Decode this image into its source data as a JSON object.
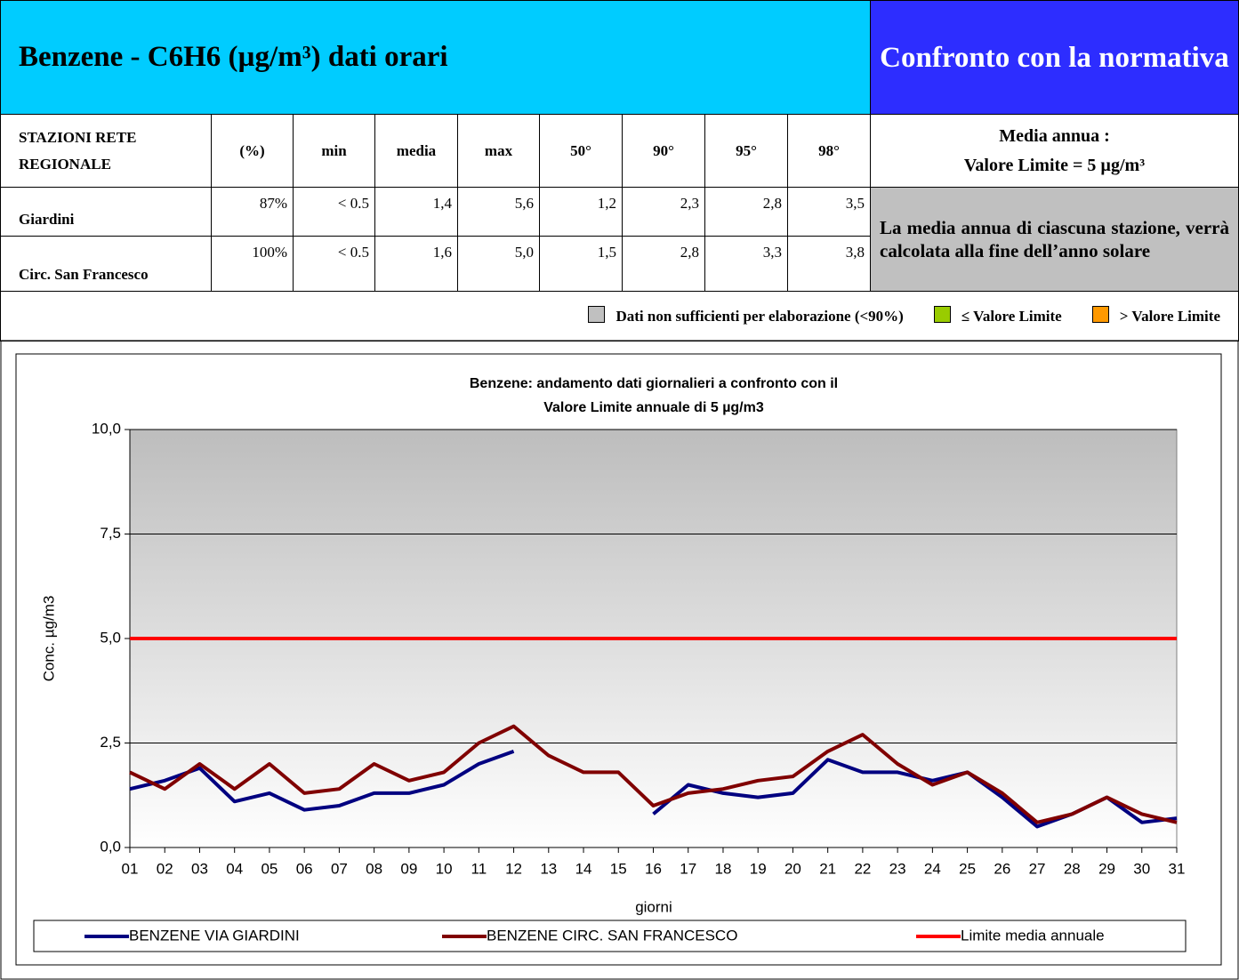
{
  "header": {
    "title": "Benzene - C6H6 (µg/m³) dati orari",
    "right": "Confronto con la normativa"
  },
  "table": {
    "columns": [
      "STAZIONI RETE REGIONALE",
      "(%)",
      "min",
      "media",
      "max",
      "50°",
      "90°",
      "95°",
      "98°"
    ],
    "rows": [
      [
        "Giardini",
        "87%",
        "< 0.5",
        "1,4",
        "5,6",
        "1,2",
        "2,3",
        "2,8",
        "3,5"
      ],
      [
        "Circ. San Francesco",
        "100%",
        "< 0.5",
        "1,6",
        "5,0",
        "1,5",
        "2,8",
        "3,3",
        "3,8"
      ]
    ]
  },
  "normativa": {
    "heading": "Media annua :",
    "limit": "Valore Limite = 5 µg/m³",
    "note": "La media annua di ciascuna stazione, verrà calcolata alla fine dell’anno solare"
  },
  "legend": [
    {
      "label": "Dati non sufficienti per elaborazione (<90%)",
      "color": "#c0c0c0"
    },
    {
      "label": "≤ Valore Limite",
      "color": "#99cc00"
    },
    {
      "label": "> Valore Limite",
      "color": "#ff9900"
    }
  ],
  "chart_data": {
    "type": "line",
    "title": [
      "Benzene: andamento dati giornalieri a confronto con il",
      "Valore Limite annuale  di 5 µg/m3"
    ],
    "xlabel": "giorni",
    "ylabel": "Conc. µg/m3",
    "categories": [
      "01",
      "02",
      "03",
      "04",
      "05",
      "06",
      "07",
      "08",
      "09",
      "10",
      "11",
      "12",
      "13",
      "14",
      "15",
      "16",
      "17",
      "18",
      "19",
      "20",
      "21",
      "22",
      "23",
      "24",
      "25",
      "26",
      "27",
      "28",
      "29",
      "30",
      "31"
    ],
    "series": [
      {
        "name": "BENZENE VIA GIARDINI",
        "color": "#000080",
        "values": [
          1.4,
          1.6,
          1.9,
          1.1,
          1.3,
          0.9,
          1.0,
          1.3,
          1.3,
          1.5,
          2.0,
          2.3,
          null,
          null,
          null,
          0.8,
          1.5,
          1.3,
          1.2,
          1.3,
          2.1,
          1.8,
          1.8,
          1.6,
          1.8,
          1.2,
          0.5,
          0.8,
          1.2,
          0.6,
          0.7
        ]
      },
      {
        "name": "BENZENE CIRC. SAN FRANCESCO",
        "color": "#800000",
        "values": [
          1.8,
          1.4,
          2.0,
          1.4,
          2.0,
          1.3,
          1.4,
          2.0,
          1.6,
          1.8,
          2.5,
          2.9,
          2.2,
          1.8,
          1.8,
          1.0,
          1.3,
          1.4,
          1.6,
          1.7,
          2.3,
          2.7,
          2.0,
          1.5,
          1.8,
          1.3,
          0.6,
          0.8,
          1.2,
          0.8,
          0.6
        ]
      },
      {
        "name": "Limite media annuale",
        "color": "#ff0000",
        "values": [
          5,
          5,
          5,
          5,
          5,
          5,
          5,
          5,
          5,
          5,
          5,
          5,
          5,
          5,
          5,
          5,
          5,
          5,
          5,
          5,
          5,
          5,
          5,
          5,
          5,
          5,
          5,
          5,
          5,
          5,
          5
        ]
      }
    ],
    "ylim": [
      0,
      10
    ],
    "yticks": [
      {
        "value": 0,
        "label": "0,0"
      },
      {
        "value": 2.5,
        "label": "2,5"
      },
      {
        "value": 5,
        "label": "5,0"
      },
      {
        "value": 7.5,
        "label": "7,5"
      },
      {
        "value": 10,
        "label": "10,0"
      }
    ],
    "grid": true
  }
}
